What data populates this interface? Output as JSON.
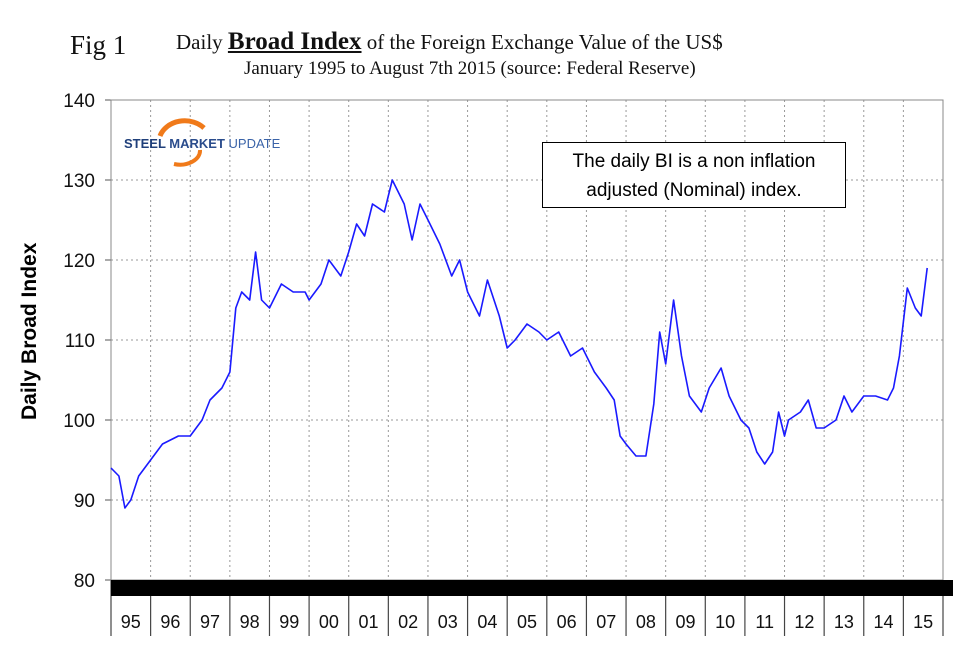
{
  "figure_label": "Fig 1",
  "logo_text": {
    "steel": "STEEL",
    "market": "MARKET",
    "update": "UPDATE"
  },
  "note": {
    "line1": "The daily BI is a non inflation",
    "line2": "adjusted (Nominal) index."
  },
  "chart_data": {
    "type": "line",
    "title_prefix": "Daily",
    "title_bold": "Broad Index",
    "title_suffix": "of the Foreign Exchange Value of the US$",
    "subtitle": "January 1995 to August 7th 2015 (source: Federal Reserve)",
    "xlabel": "",
    "ylabel": "Daily Broad Index",
    "ylim": [
      80,
      140
    ],
    "yticks": [
      80,
      90,
      100,
      110,
      120,
      130,
      140
    ],
    "xlim": [
      1995,
      2016
    ],
    "xtick_labels": [
      "95",
      "96",
      "97",
      "98",
      "99",
      "00",
      "01",
      "02",
      "03",
      "04",
      "05",
      "06",
      "07",
      "08",
      "09",
      "10",
      "11",
      "12",
      "13",
      "14",
      "15"
    ],
    "grid": true,
    "series": [
      {
        "name": "Broad Index",
        "color": "#1a1aff",
        "x": [
          1995.0,
          1995.2,
          1995.35,
          1995.5,
          1995.7,
          1996.0,
          1996.3,
          1996.7,
          1997.0,
          1997.3,
          1997.5,
          1997.8,
          1998.0,
          1998.15,
          1998.3,
          1998.5,
          1998.65,
          1998.8,
          1999.0,
          1999.3,
          1999.6,
          1999.9,
          2000.0,
          2000.3,
          2000.5,
          2000.8,
          2001.0,
          2001.2,
          2001.4,
          2001.6,
          2001.9,
          2002.0,
          2002.1,
          2002.4,
          2002.6,
          2002.8,
          2003.0,
          2003.3,
          2003.6,
          2003.8,
          2004.0,
          2004.3,
          2004.5,
          2004.8,
          2005.0,
          2005.2,
          2005.5,
          2005.8,
          2006.0,
          2006.3,
          2006.6,
          2006.9,
          2007.2,
          2007.5,
          2007.7,
          2007.85,
          2008.0,
          2008.25,
          2008.5,
          2008.7,
          2008.85,
          2009.0,
          2009.2,
          2009.4,
          2009.6,
          2009.9,
          2010.1,
          2010.4,
          2010.6,
          2010.9,
          2011.1,
          2011.3,
          2011.5,
          2011.7,
          2011.85,
          2012.0,
          2012.1,
          2012.4,
          2012.6,
          2012.8,
          2013.0,
          2013.3,
          2013.5,
          2013.7,
          2014.0,
          2014.3,
          2014.6,
          2014.75,
          2014.9,
          2015.1,
          2015.3,
          2015.45,
          2015.6
        ],
        "y": [
          94,
          93,
          89,
          90,
          93,
          95,
          97,
          98,
          98,
          100,
          102.5,
          104,
          106,
          114,
          116,
          115,
          121,
          115,
          114,
          117,
          116,
          116,
          115,
          117,
          120,
          118,
          121,
          124.5,
          123,
          127,
          126,
          128,
          130,
          127,
          122.5,
          127,
          125,
          122,
          118,
          120,
          116,
          113,
          117.5,
          113,
          109,
          110,
          112,
          111,
          110,
          111,
          108,
          109,
          106,
          104,
          102.5,
          98,
          97,
          95.5,
          95.5,
          102,
          111,
          107,
          115,
          108,
          103,
          101,
          104,
          106.5,
          103,
          100,
          99,
          96,
          94.5,
          96,
          101,
          98,
          100,
          101,
          102.5,
          99,
          99,
          100,
          103,
          101,
          103,
          103,
          102.5,
          104,
          108,
          116.5,
          114,
          113,
          119
        ]
      }
    ]
  }
}
